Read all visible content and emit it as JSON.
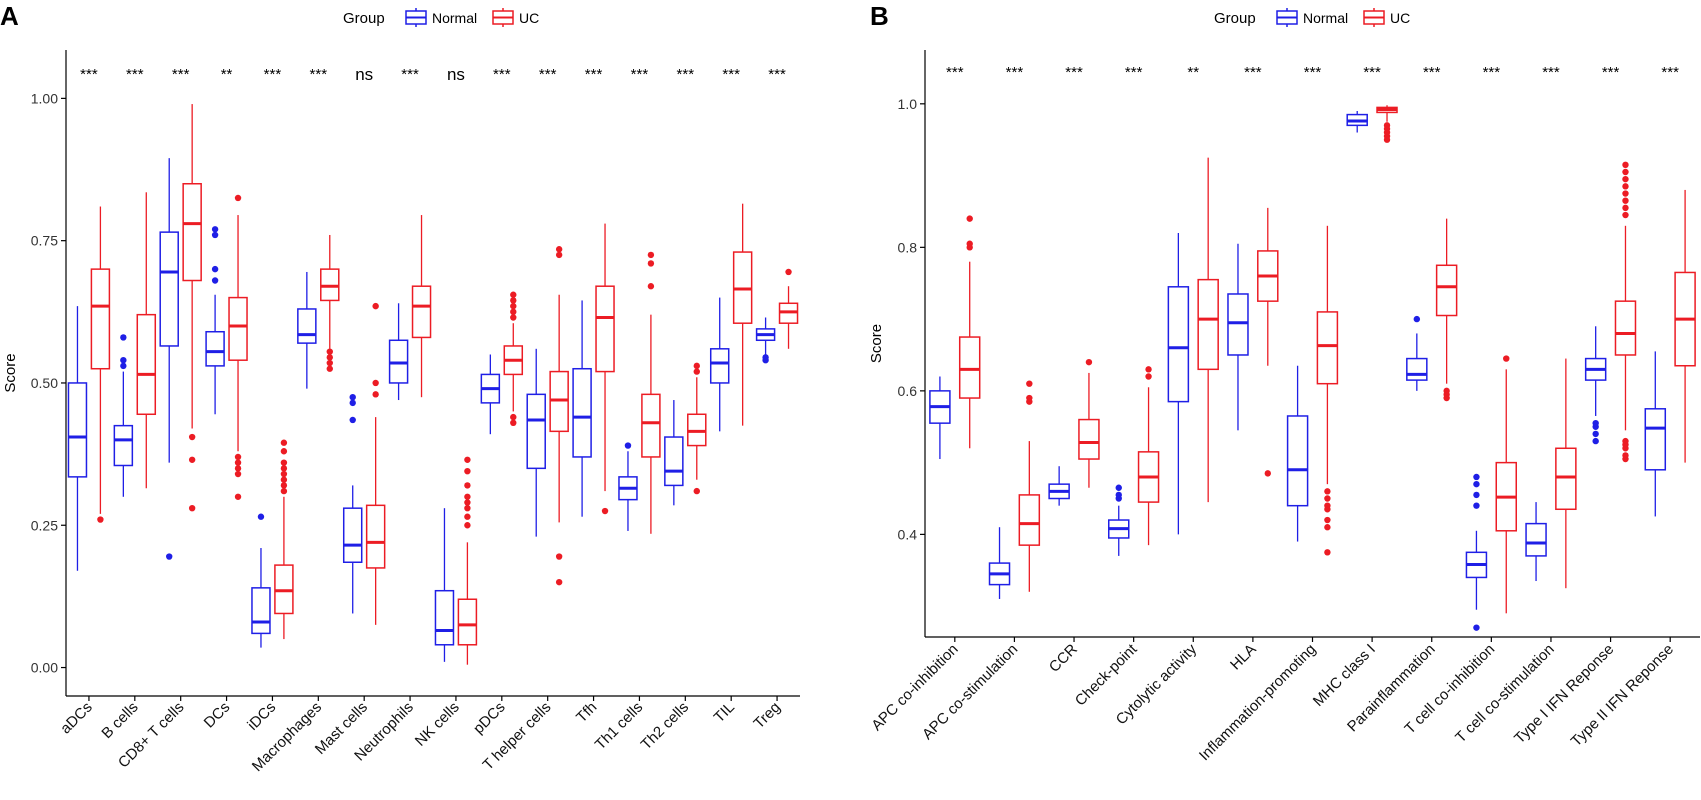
{
  "colors": {
    "normal": "#1f1fe6",
    "uc": "#ec1c24",
    "axis": "#000000"
  },
  "chart_data": [
    {
      "type": "boxplot",
      "panel_label": "A",
      "legend": {
        "title": "Group",
        "entries": [
          "Normal",
          "UC"
        ],
        "placement": "top-center"
      },
      "ylabel": "Score",
      "ylim": [
        -0.05,
        1.085
      ],
      "yticks": [
        0.0,
        0.25,
        0.5,
        0.75,
        1.0
      ],
      "ytick_labels": [
        "0.00",
        "0.25",
        "0.50",
        "0.75",
        "1.00"
      ],
      "categories": [
        "aDCs",
        "B cells",
        "CD8+ T cells",
        "DCs",
        "iDCs",
        "Macrophages",
        "Mast cells",
        "Neutrophils",
        "NK cells",
        "pDCs",
        "T helper cells",
        "Tfh",
        "Th1 cells",
        "Th2 cells",
        "TIL",
        "Treg"
      ],
      "significance": [
        "***",
        "***",
        "***",
        "**",
        "***",
        "***",
        "ns",
        "***",
        "ns",
        "***",
        "***",
        "***",
        "***",
        "***",
        "***",
        "***"
      ],
      "normal": [
        {
          "min": 0.17,
          "q1": 0.335,
          "median": 0.405,
          "q3": 0.5,
          "max": 0.635,
          "outliers": []
        },
        {
          "min": 0.3,
          "q1": 0.355,
          "median": 0.4,
          "q3": 0.425,
          "max": 0.52,
          "outliers": [
            0.53,
            0.54,
            0.58
          ]
        },
        {
          "min": 0.36,
          "q1": 0.565,
          "median": 0.695,
          "q3": 0.765,
          "max": 0.895,
          "outliers": [
            0.195
          ]
        },
        {
          "min": 0.445,
          "q1": 0.53,
          "median": 0.555,
          "q3": 0.59,
          "max": 0.655,
          "outliers": [
            0.68,
            0.7,
            0.76,
            0.77
          ]
        },
        {
          "min": 0.035,
          "q1": 0.06,
          "median": 0.08,
          "q3": 0.14,
          "max": 0.21,
          "outliers": [
            0.265
          ]
        },
        {
          "min": 0.49,
          "q1": 0.57,
          "median": 0.585,
          "q3": 0.63,
          "max": 0.695,
          "outliers": []
        },
        {
          "min": 0.095,
          "q1": 0.185,
          "median": 0.215,
          "q3": 0.28,
          "max": 0.32,
          "outliers": [
            0.435,
            0.465,
            0.475
          ]
        },
        {
          "min": 0.47,
          "q1": 0.5,
          "median": 0.535,
          "q3": 0.575,
          "max": 0.64,
          "outliers": []
        },
        {
          "min": 0.01,
          "q1": 0.04,
          "median": 0.065,
          "q3": 0.135,
          "max": 0.28,
          "outliers": []
        },
        {
          "min": 0.41,
          "q1": 0.465,
          "median": 0.49,
          "q3": 0.515,
          "max": 0.55,
          "outliers": []
        },
        {
          "min": 0.23,
          "q1": 0.35,
          "median": 0.435,
          "q3": 0.48,
          "max": 0.56,
          "outliers": []
        },
        {
          "min": 0.265,
          "q1": 0.37,
          "median": 0.44,
          "q3": 0.525,
          "max": 0.645,
          "outliers": []
        },
        {
          "min": 0.24,
          "q1": 0.295,
          "median": 0.315,
          "q3": 0.335,
          "max": 0.38,
          "outliers": [
            0.39
          ]
        },
        {
          "min": 0.285,
          "q1": 0.32,
          "median": 0.345,
          "q3": 0.405,
          "max": 0.47,
          "outliers": []
        },
        {
          "min": 0.415,
          "q1": 0.5,
          "median": 0.535,
          "q3": 0.56,
          "max": 0.65,
          "outliers": []
        },
        {
          "min": 0.55,
          "q1": 0.575,
          "median": 0.585,
          "q3": 0.595,
          "max": 0.615,
          "outliers": [
            0.54,
            0.545
          ]
        }
      ],
      "uc": [
        {
          "min": 0.27,
          "q1": 0.525,
          "median": 0.635,
          "q3": 0.7,
          "max": 0.81,
          "outliers": [
            0.26
          ]
        },
        {
          "min": 0.315,
          "q1": 0.445,
          "median": 0.515,
          "q3": 0.62,
          "max": 0.835,
          "outliers": []
        },
        {
          "min": 0.42,
          "q1": 0.68,
          "median": 0.78,
          "q3": 0.85,
          "max": 0.99,
          "outliers": [
            0.28,
            0.365,
            0.405
          ]
        },
        {
          "min": 0.38,
          "q1": 0.54,
          "median": 0.6,
          "q3": 0.65,
          "max": 0.795,
          "outliers": [
            0.3,
            0.34,
            0.35,
            0.36,
            0.37,
            0.825
          ]
        },
        {
          "min": 0.05,
          "q1": 0.095,
          "median": 0.135,
          "q3": 0.18,
          "max": 0.3,
          "outliers": [
            0.31,
            0.32,
            0.33,
            0.34,
            0.35,
            0.36,
            0.38,
            0.395
          ]
        },
        {
          "min": 0.56,
          "q1": 0.645,
          "median": 0.67,
          "q3": 0.7,
          "max": 0.76,
          "outliers": [
            0.525,
            0.535,
            0.545,
            0.555
          ]
        },
        {
          "min": 0.075,
          "q1": 0.175,
          "median": 0.22,
          "q3": 0.285,
          "max": 0.44,
          "outliers": [
            0.48,
            0.5,
            0.635
          ]
        },
        {
          "min": 0.475,
          "q1": 0.58,
          "median": 0.635,
          "q3": 0.67,
          "max": 0.795,
          "outliers": []
        },
        {
          "min": 0.005,
          "q1": 0.04,
          "median": 0.075,
          "q3": 0.12,
          "max": 0.22,
          "outliers": [
            0.25,
            0.265,
            0.28,
            0.29,
            0.3,
            0.32,
            0.345,
            0.365
          ]
        },
        {
          "min": 0.45,
          "q1": 0.515,
          "median": 0.54,
          "q3": 0.565,
          "max": 0.605,
          "outliers": [
            0.43,
            0.44,
            0.615,
            0.625,
            0.635,
            0.645,
            0.655
          ]
        },
        {
          "min": 0.255,
          "q1": 0.415,
          "median": 0.47,
          "q3": 0.52,
          "max": 0.655,
          "outliers": [
            0.15,
            0.195,
            0.725,
            0.735
          ]
        },
        {
          "min": 0.31,
          "q1": 0.52,
          "median": 0.615,
          "q3": 0.67,
          "max": 0.78,
          "outliers": [
            0.275
          ]
        },
        {
          "min": 0.235,
          "q1": 0.37,
          "median": 0.43,
          "q3": 0.48,
          "max": 0.62,
          "outliers": [
            0.67,
            0.71,
            0.725
          ]
        },
        {
          "min": 0.33,
          "q1": 0.39,
          "median": 0.415,
          "q3": 0.445,
          "max": 0.51,
          "outliers": [
            0.31,
            0.52,
            0.53
          ]
        },
        {
          "min": 0.425,
          "q1": 0.605,
          "median": 0.665,
          "q3": 0.73,
          "max": 0.815,
          "outliers": []
        },
        {
          "min": 0.56,
          "q1": 0.605,
          "median": 0.625,
          "q3": 0.64,
          "max": 0.67,
          "outliers": [
            0.695
          ]
        }
      ]
    },
    {
      "type": "boxplot",
      "panel_label": "B",
      "legend": {
        "title": "Group",
        "entries": [
          "Normal",
          "UC"
        ],
        "placement": "top-center"
      },
      "ylabel": "Score",
      "ylim": [
        0.257,
        1.075
      ],
      "yticks": [
        0.4,
        0.6,
        0.8,
        1.0
      ],
      "ytick_labels": [
        "0.4",
        "0.6",
        "0.8",
        "1.0"
      ],
      "categories": [
        "APC co-inhibition",
        "APC co-stimulation",
        "CCR",
        "Check-point",
        "Cytolytic activity",
        "HLA",
        "Inflammation-promoting",
        "MHC class I",
        "Parainflammation",
        "T cell co-inhibition",
        "T cell co-stimulation",
        "Type I IFN Reponse",
        "Type II IFN Reponse"
      ],
      "significance": [
        "***",
        "***",
        "***",
        "***",
        "**",
        "***",
        "***",
        "***",
        "***",
        "***",
        "***",
        "***",
        "***"
      ],
      "normal": [
        {
          "min": 0.505,
          "q1": 0.555,
          "median": 0.578,
          "q3": 0.6,
          "max": 0.62,
          "outliers": []
        },
        {
          "min": 0.31,
          "q1": 0.33,
          "median": 0.345,
          "q3": 0.36,
          "max": 0.41,
          "outliers": []
        },
        {
          "min": 0.44,
          "q1": 0.45,
          "median": 0.46,
          "q3": 0.47,
          "max": 0.495,
          "outliers": []
        },
        {
          "min": 0.37,
          "q1": 0.395,
          "median": 0.408,
          "q3": 0.42,
          "max": 0.44,
          "outliers": [
            0.45,
            0.455,
            0.465
          ]
        },
        {
          "min": 0.4,
          "q1": 0.585,
          "median": 0.66,
          "q3": 0.745,
          "max": 0.82,
          "outliers": []
        },
        {
          "min": 0.545,
          "q1": 0.65,
          "median": 0.695,
          "q3": 0.735,
          "max": 0.805,
          "outliers": []
        },
        {
          "min": 0.39,
          "q1": 0.44,
          "median": 0.49,
          "q3": 0.565,
          "max": 0.635,
          "outliers": []
        },
        {
          "min": 0.96,
          "q1": 0.97,
          "median": 0.976,
          "q3": 0.985,
          "max": 0.99,
          "outliers": []
        },
        {
          "min": 0.6,
          "q1": 0.615,
          "median": 0.623,
          "q3": 0.645,
          "max": 0.68,
          "outliers": [
            0.7
          ]
        },
        {
          "min": 0.295,
          "q1": 0.34,
          "median": 0.358,
          "q3": 0.375,
          "max": 0.405,
          "outliers": [
            0.27,
            0.44,
            0.455,
            0.47,
            0.48
          ]
        },
        {
          "min": 0.335,
          "q1": 0.37,
          "median": 0.388,
          "q3": 0.415,
          "max": 0.445,
          "outliers": []
        },
        {
          "min": 0.565,
          "q1": 0.615,
          "median": 0.63,
          "q3": 0.645,
          "max": 0.69,
          "outliers": [
            0.53,
            0.54,
            0.55,
            0.555
          ]
        },
        {
          "min": 0.425,
          "q1": 0.49,
          "median": 0.548,
          "q3": 0.575,
          "max": 0.655,
          "outliers": []
        }
      ],
      "uc": [
        {
          "min": 0.52,
          "q1": 0.59,
          "median": 0.63,
          "q3": 0.675,
          "max": 0.78,
          "outliers": [
            0.8,
            0.805,
            0.84
          ]
        },
        {
          "min": 0.32,
          "q1": 0.385,
          "median": 0.415,
          "q3": 0.455,
          "max": 0.53,
          "outliers": [
            0.585,
            0.59,
            0.61
          ]
        },
        {
          "min": 0.465,
          "q1": 0.505,
          "median": 0.528,
          "q3": 0.56,
          "max": 0.625,
          "outliers": [
            0.64
          ]
        },
        {
          "min": 0.385,
          "q1": 0.445,
          "median": 0.48,
          "q3": 0.515,
          "max": 0.605,
          "outliers": [
            0.62,
            0.63
          ]
        },
        {
          "min": 0.445,
          "q1": 0.63,
          "median": 0.7,
          "q3": 0.755,
          "max": 0.925,
          "outliers": []
        },
        {
          "min": 0.635,
          "q1": 0.725,
          "median": 0.76,
          "q3": 0.795,
          "max": 0.855,
          "outliers": [
            0.485
          ]
        },
        {
          "min": 0.47,
          "q1": 0.61,
          "median": 0.663,
          "q3": 0.71,
          "max": 0.83,
          "outliers": [
            0.375,
            0.41,
            0.42,
            0.435,
            0.44,
            0.45,
            0.46
          ]
        },
        {
          "min": 0.975,
          "q1": 0.988,
          "median": 0.992,
          "q3": 0.995,
          "max": 0.998,
          "outliers": [
            0.95,
            0.955,
            0.96,
            0.965,
            0.97
          ]
        },
        {
          "min": 0.61,
          "q1": 0.705,
          "median": 0.745,
          "q3": 0.775,
          "max": 0.84,
          "outliers": [
            0.59,
            0.595,
            0.6
          ]
        },
        {
          "min": 0.29,
          "q1": 0.405,
          "median": 0.452,
          "q3": 0.5,
          "max": 0.63,
          "outliers": [
            0.645
          ]
        },
        {
          "min": 0.325,
          "q1": 0.435,
          "median": 0.48,
          "q3": 0.52,
          "max": 0.645,
          "outliers": []
        },
        {
          "min": 0.545,
          "q1": 0.65,
          "median": 0.68,
          "q3": 0.725,
          "max": 0.83,
          "outliers": [
            0.505,
            0.51,
            0.52,
            0.525,
            0.53,
            0.845,
            0.855,
            0.865,
            0.875,
            0.885,
            0.895,
            0.905,
            0.915
          ]
        },
        {
          "min": 0.5,
          "q1": 0.635,
          "median": 0.7,
          "q3": 0.765,
          "max": 0.88,
          "outliers": []
        }
      ]
    }
  ]
}
